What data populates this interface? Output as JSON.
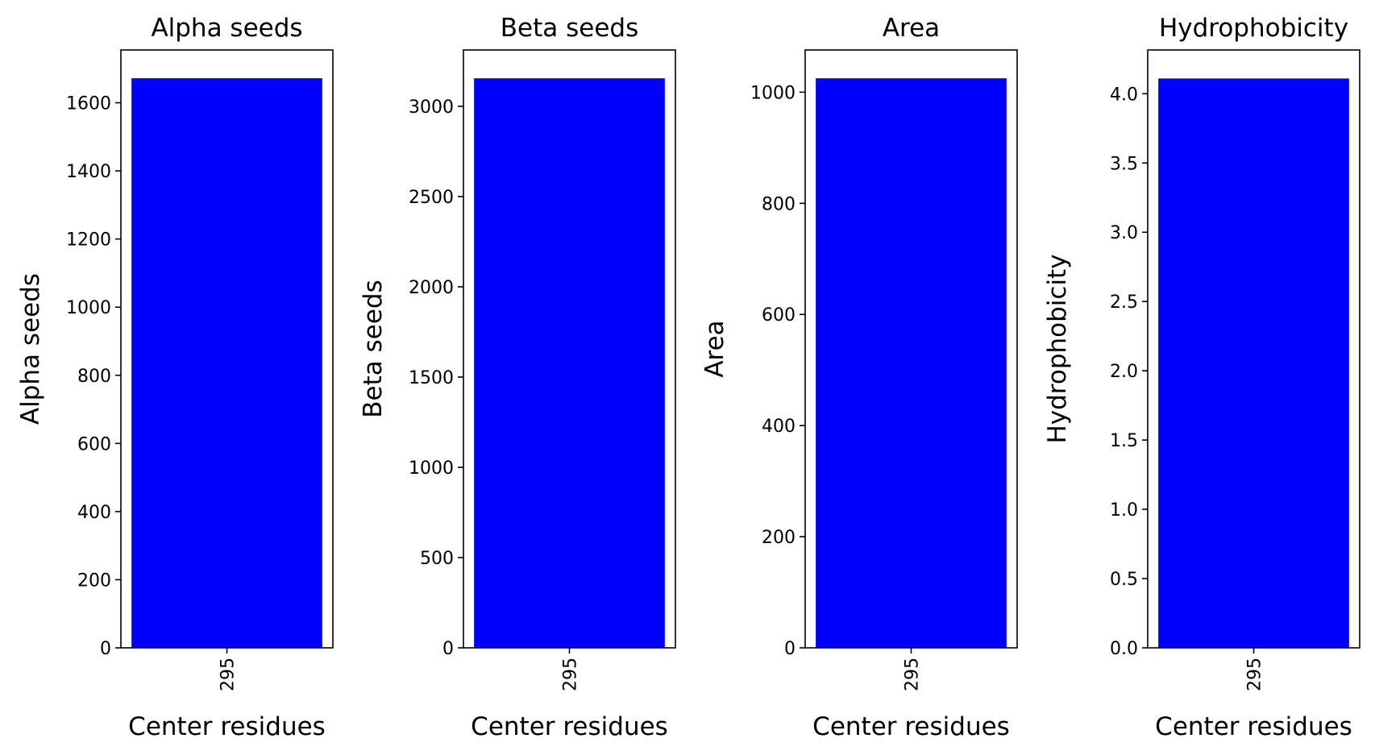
{
  "chart_data": [
    {
      "type": "bar",
      "title": "Alpha seeds",
      "xlabel": "Center residues",
      "ylabel": "Alpha seeds",
      "categories": [
        "295"
      ],
      "values": [
        1672
      ],
      "ylim": [
        0,
        1755
      ],
      "yticks": [
        0,
        200,
        400,
        600,
        800,
        1000,
        1200,
        1400,
        1600
      ],
      "ytick_labels": [
        "0",
        "200",
        "400",
        "600",
        "800",
        "1000",
        "1200",
        "1400",
        "1600"
      ],
      "bar_color": "#0000ff",
      "grid": false
    },
    {
      "type": "bar",
      "title": "Beta seeds",
      "xlabel": "Center residues",
      "ylabel": "Beta seeds",
      "categories": [
        "295"
      ],
      "values": [
        3155
      ],
      "ylim": [
        0,
        3312
      ],
      "yticks": [
        0,
        500,
        1000,
        1500,
        2000,
        2500,
        3000
      ],
      "ytick_labels": [
        "0",
        "500",
        "1000",
        "1500",
        "2000",
        "2500",
        "3000"
      ],
      "bar_color": "#0000ff",
      "grid": false
    },
    {
      "type": "bar",
      "title": "Area",
      "xlabel": "Center residues",
      "ylabel": "Area",
      "categories": [
        "295"
      ],
      "values": [
        1025
      ],
      "ylim": [
        0,
        1076
      ],
      "yticks": [
        0,
        200,
        400,
        600,
        800,
        1000
      ],
      "ytick_labels": [
        "0",
        "200",
        "400",
        "600",
        "800",
        "1000"
      ],
      "bar_color": "#0000ff",
      "grid": false
    },
    {
      "type": "bar",
      "title": "Hydrophobicity",
      "xlabel": "Center residues",
      "ylabel": "Hydrophobicity",
      "categories": [
        "295"
      ],
      "values": [
        4.11
      ],
      "ylim": [
        0,
        4.316
      ],
      "yticks": [
        0,
        0.5,
        1.0,
        1.5,
        2.0,
        2.5,
        3.0,
        3.5,
        4.0
      ],
      "ytick_labels": [
        "0.0",
        "0.5",
        "1.0",
        "1.5",
        "2.0",
        "2.5",
        "3.0",
        "3.5",
        "4.0"
      ],
      "bar_color": "#0000ff",
      "grid": false
    }
  ]
}
